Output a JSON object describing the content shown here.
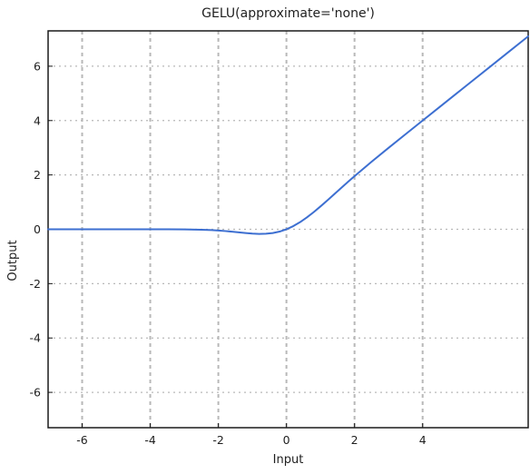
{
  "chart_data": {
    "type": "line",
    "title": "GELU(approximate='none')",
    "xlabel": "Input",
    "ylabel": "Output",
    "xlim": [
      -7,
      7.1
    ],
    "ylim": [
      -7.3,
      7.3
    ],
    "xticks": [
      -6,
      -4,
      -2,
      0,
      2,
      4
    ],
    "yticks": [
      -6,
      -4,
      -2,
      0,
      2,
      4,
      6
    ],
    "grid": true,
    "grid_style": "dotted",
    "series": [
      {
        "color": "#3d6fd1",
        "x": [
          -7,
          -6.5,
          -6,
          -5.5,
          -5,
          -4.5,
          -4,
          -3.5,
          -3,
          -2.5,
          -2.2,
          -2,
          -1.8,
          -1.6,
          -1.4,
          -1.2,
          -1,
          -0.8,
          -0.6,
          -0.4,
          -0.2,
          0,
          0.2,
          0.4,
          0.6,
          0.8,
          1,
          1.2,
          1.4,
          1.6,
          1.8,
          2,
          2.5,
          3,
          3.5,
          4,
          4.5,
          5,
          5.5,
          6,
          6.5,
          7,
          7.1
        ],
        "y": [
          0,
          0,
          0,
          0,
          0,
          0,
          -0.0001,
          -0.0008,
          -0.004,
          -0.0155,
          -0.0306,
          -0.0455,
          -0.0647,
          -0.0877,
          -0.1131,
          -0.1381,
          -0.1587,
          -0.1695,
          -0.1646,
          -0.1379,
          -0.0841,
          0,
          0.1159,
          0.2621,
          0.4354,
          0.6305,
          0.8413,
          1.0619,
          1.2869,
          1.5123,
          1.7353,
          1.9545,
          2.4845,
          2.996,
          3.4992,
          3.9999,
          4.5,
          5,
          5.5,
          6,
          6.5,
          7,
          7.1
        ]
      }
    ]
  }
}
